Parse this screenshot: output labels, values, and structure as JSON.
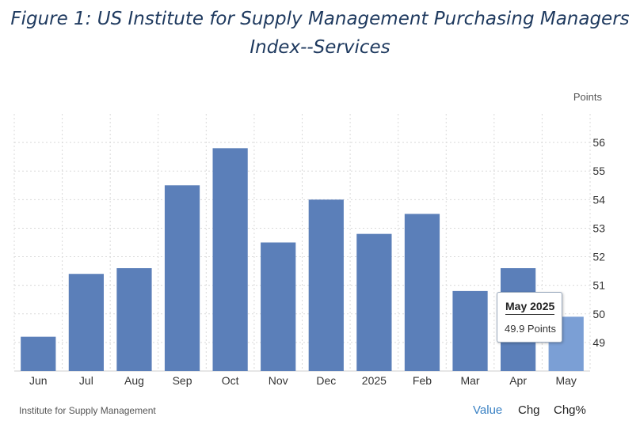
{
  "title": {
    "line1": "Figure 1: US Institute for Supply Management Purchasing Managers",
    "line2": "Index--Services"
  },
  "unit_label": "Points",
  "source": "Institute for Supply Management",
  "toggles": {
    "value": "Value",
    "chg": "Chg",
    "chgpct": "Chg%"
  },
  "tooltip": {
    "title": "May 2025",
    "value": "49.9 Points"
  },
  "colors": {
    "bar": "#5b7fb9",
    "bar_highlight": "#7b9fd5",
    "grid": "#d9d9d9",
    "title": "#1f3a5f",
    "active_toggle": "#3b82c4"
  },
  "chart_data": {
    "type": "bar",
    "categories": [
      "Jun",
      "Jul",
      "Aug",
      "Sep",
      "Oct",
      "Nov",
      "Dec",
      "2025",
      "Feb",
      "Mar",
      "Apr",
      "May"
    ],
    "values": [
      49.2,
      51.4,
      51.6,
      54.5,
      55.8,
      52.5,
      54.0,
      52.8,
      53.5,
      50.8,
      51.6,
      49.9
    ],
    "y_ticks": [
      49,
      50,
      51,
      52,
      53,
      54,
      55,
      56
    ],
    "ylim": [
      48,
      57
    ],
    "ylabel": "Points",
    "highlighted_index": 11,
    "grid": true,
    "y_axis_position": "right"
  }
}
